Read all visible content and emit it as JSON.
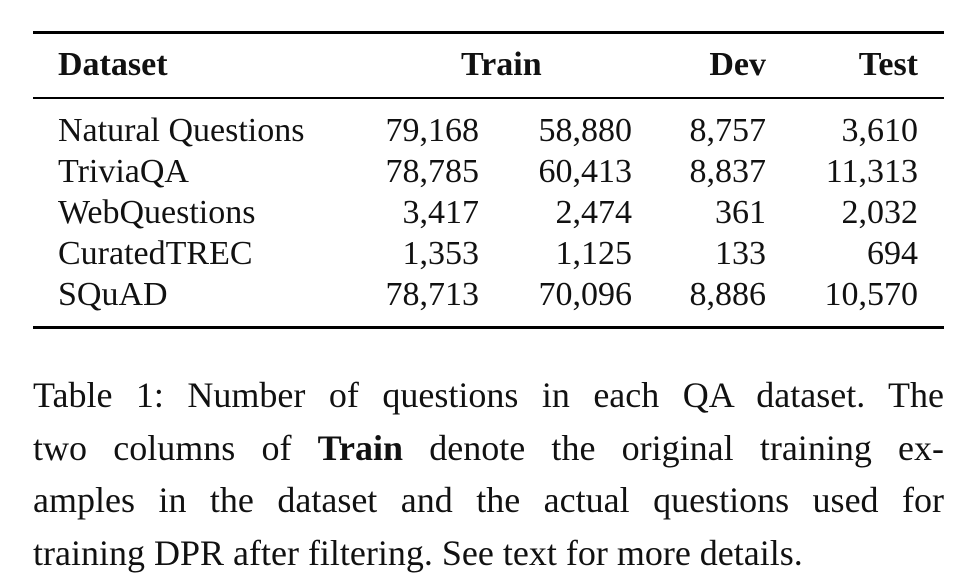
{
  "table": {
    "headers": {
      "dataset": "Dataset",
      "train": "Train",
      "dev": "Dev",
      "test": "Test"
    },
    "rows": [
      {
        "dataset": "Natural Questions",
        "train_orig": "79,168",
        "train_used": "58,880",
        "dev": "8,757",
        "test": "3,610"
      },
      {
        "dataset": "TriviaQA",
        "train_orig": "78,785",
        "train_used": "60,413",
        "dev": "8,837",
        "test": "11,313"
      },
      {
        "dataset": "WebQuestions",
        "train_orig": "3,417",
        "train_used": "2,474",
        "dev": "361",
        "test": "2,032"
      },
      {
        "dataset": "CuratedTREC",
        "train_orig": "1,353",
        "train_used": "1,125",
        "dev": "133",
        "test": "694"
      },
      {
        "dataset": "SQuAD",
        "train_orig": "78,713",
        "train_used": "70,096",
        "dev": "8,886",
        "test": "10,570"
      }
    ]
  },
  "caption": {
    "line1": "Table 1: Number of questions in each QA dataset. The",
    "line2_pre": "two columns of",
    "line2_bold": "Train",
    "line2_post": "denote the original training ex-",
    "line3": "amples in the dataset and the actual questions used for",
    "line4": "training DPR after filtering. See text for more details."
  }
}
